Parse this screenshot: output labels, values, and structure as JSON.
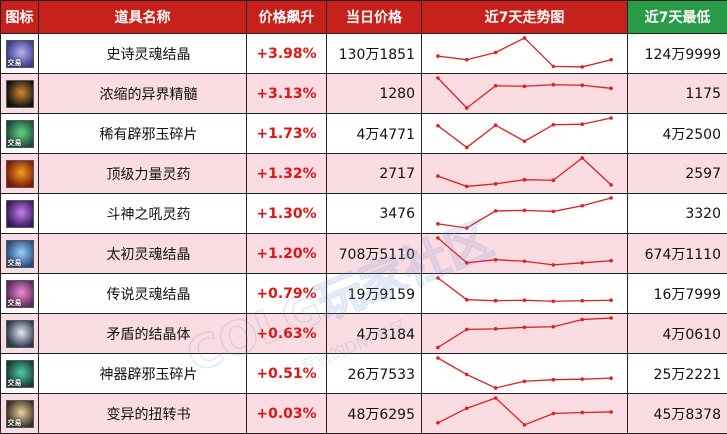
{
  "headers": {
    "icon": "图标",
    "name": "道具名称",
    "change": "价格飙升",
    "price": "当日价格",
    "trend": "近7天走势图",
    "low": "近7天最低"
  },
  "watermark": "COLG玩家社区",
  "watermark_sub": "专业的DNF社区",
  "rows": [
    {
      "icon": "soul-crystal-epic-icon",
      "tradable": true,
      "tag": "交易",
      "colors": [
        "#3a3b8a",
        "#b9b0f0"
      ],
      "name": "史诗灵魂结晶",
      "change": "+3.98%",
      "price": "130万1851",
      "low": "124万9999",
      "trend": [
        2.5,
        1.8,
        3.2,
        6.0,
        0.5,
        0.4,
        1.8
      ]
    },
    {
      "icon": "condensed-essence-icon",
      "tradable": false,
      "tag": "",
      "colors": [
        "#111111",
        "#d08a30"
      ],
      "name": "浓缩的异界精髓",
      "change": "+3.13%",
      "price": "1280",
      "low": "1175",
      "trend": [
        6.0,
        0.2,
        4.5,
        4.4,
        4.7,
        4.6,
        4.0
      ]
    },
    {
      "icon": "rare-jade-shard-icon",
      "tradable": true,
      "tag": "交易",
      "colors": [
        "#1f4a3a",
        "#5fd87f"
      ],
      "name": "稀有辟邪玉碎片",
      "change": "+1.73%",
      "price": "4万4771",
      "low": "4万2500",
      "trend": [
        4.5,
        0.3,
        4.6,
        1.5,
        4.7,
        4.8,
        6.0
      ]
    },
    {
      "icon": "strength-elixir-icon",
      "tradable": false,
      "tag": "",
      "colors": [
        "#7a1a0a",
        "#f5a020"
      ],
      "name": "顶级力量灵药",
      "change": "+1.32%",
      "price": "2717",
      "low": "2597",
      "trend": [
        2.5,
        0.5,
        1.0,
        1.8,
        1.7,
        6.0,
        0.8
      ]
    },
    {
      "icon": "battle-roar-elixir-icon",
      "tradable": false,
      "tag": "",
      "colors": [
        "#3a1a5a",
        "#c080f0"
      ],
      "name": "斗神之吼灵药",
      "change": "+1.30%",
      "price": "3476",
      "low": "3320",
      "trend": [
        1.0,
        0.2,
        3.5,
        3.6,
        3.4,
        4.5,
        6.0
      ]
    },
    {
      "icon": "primal-soul-crystal-icon",
      "tradable": true,
      "tag": "交易",
      "colors": [
        "#2a4a7a",
        "#9ad0ff"
      ],
      "name": "太初灵魂结晶",
      "change": "+1.20%",
      "price": "708万5110",
      "low": "674万1110",
      "trend": [
        6.0,
        1.2,
        1.8,
        1.5,
        0.8,
        1.2,
        1.6
      ]
    },
    {
      "icon": "legend-soul-crystal-icon",
      "tradable": true,
      "tag": "交易",
      "colors": [
        "#5a2a5a",
        "#f08ad0"
      ],
      "name": "传说灵魂结晶",
      "change": "+0.79%",
      "price": "19万9159",
      "low": "16万7999",
      "trend": [
        6.0,
        1.8,
        1.6,
        1.7,
        1.5,
        1.6,
        1.7
      ]
    },
    {
      "icon": "paradox-crystal-icon",
      "tradable": false,
      "tag": "",
      "colors": [
        "#2a3a4a",
        "#e8e8f8"
      ],
      "name": "矛盾的结晶体",
      "change": "+0.63%",
      "price": "4万3184",
      "low": "4万0610",
      "trend": [
        0.3,
        3.8,
        3.9,
        4.2,
        4.3,
        5.7,
        6.0
      ]
    },
    {
      "icon": "artifact-jade-shard-icon",
      "tradable": true,
      "tag": "交易",
      "colors": [
        "#1a3a3a",
        "#4ad0a0"
      ],
      "name": "神器辟邪玉碎片",
      "change": "+0.51%",
      "price": "26万7533",
      "low": "25万2221",
      "trend": [
        6.0,
        2.8,
        0.2,
        1.5,
        1.8,
        1.9,
        2.1
      ]
    },
    {
      "icon": "mutation-scroll-icon",
      "tradable": true,
      "tag": "交易",
      "colors": [
        "#3a3020",
        "#e8d0a0"
      ],
      "name": "变异的扭转书",
      "change": "+0.03%",
      "price": "48万6295",
      "low": "45万8378",
      "trend": [
        1.2,
        4.0,
        6.0,
        0.8,
        3.0,
        3.2,
        3.3
      ]
    }
  ]
}
